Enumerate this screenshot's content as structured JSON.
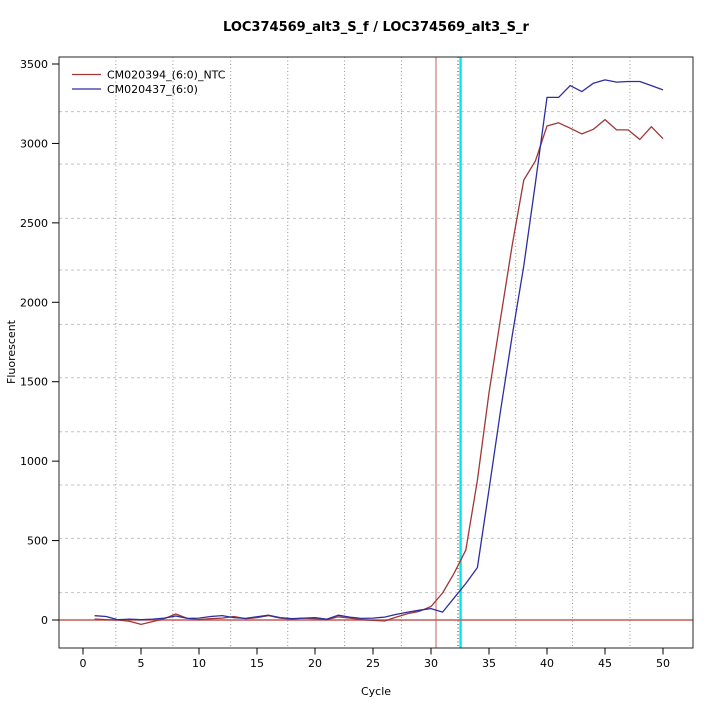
{
  "chart_data": {
    "type": "line",
    "title": "LOC374569_alt3_S_f / LOC374569_alt3_S_r",
    "xlabel": "Cycle",
    "ylabel": "Fluorescent",
    "x_ticks": [
      0,
      5,
      10,
      15,
      20,
      25,
      30,
      35,
      40,
      45,
      50
    ],
    "y_ticks": [
      0,
      500,
      1000,
      1500,
      2000,
      2500,
      3000,
      3500
    ],
    "xlim": [
      -2.1,
      52.4
    ],
    "ylim": [
      -176,
      3544
    ],
    "grid": {
      "on": true,
      "h_values": [
        172,
        514,
        850,
        1185,
        1525,
        1861,
        2203,
        2528,
        2870,
        3200
      ],
      "v_cycles": [
        2.83,
        7.75,
        12.73,
        17.65,
        22.55,
        27.45,
        32.33,
        37.3,
        42.2,
        47.15
      ],
      "h_color": "#c3c3c3",
      "v_color": "#969696"
    },
    "reference_lines": {
      "threshold_hline_y": 0,
      "threshold_hline_color": "#c45f5c",
      "ct_vline_red_x": 30.43,
      "ct_vline_red_color": "#c45f5c",
      "ct_vline_dotted_x": 32.33,
      "ct_vline_dotted_color": "#3c3c3c",
      "ct_vline_cyan_x": 32.55,
      "ct_vline_cyan_color": "#00e8e8"
    },
    "legend_position": "top-left",
    "x": [
      1,
      2,
      3,
      4,
      5,
      6,
      7,
      8,
      9,
      10,
      11,
      12,
      13,
      14,
      15,
      16,
      17,
      18,
      19,
      20,
      21,
      22,
      23,
      24,
      25,
      26,
      27,
      28,
      29,
      30,
      31,
      32,
      33,
      34,
      35,
      36,
      37,
      38,
      39,
      40,
      41,
      42,
      43,
      44,
      45,
      46,
      47,
      48,
      49,
      50
    ],
    "series": [
      {
        "name": "CM020394_(6:0)_NTC",
        "color": "#a03636",
        "values": [
          6,
          2,
          0,
          -8,
          -28,
          -10,
          8,
          38,
          10,
          2,
          8,
          12,
          22,
          8,
          15,
          28,
          12,
          5,
          12,
          8,
          2,
          20,
          12,
          2,
          -2,
          -6,
          18,
          40,
          55,
          85,
          170,
          295,
          440,
          880,
          1430,
          1900,
          2360,
          2770,
          2890,
          3110,
          3130,
          3096,
          3060,
          3089,
          3150,
          3085,
          3085,
          3025,
          3105,
          3030
        ]
      },
      {
        "name": "CM020437_(6:0)",
        "color": "#2e2e9e",
        "values": [
          27,
          22,
          2,
          5,
          2,
          5,
          12,
          25,
          10,
          12,
          22,
          28,
          15,
          10,
          20,
          30,
          15,
          8,
          12,
          15,
          5,
          30,
          18,
          10,
          12,
          18,
          35,
          50,
          62,
          72,
          50,
          140,
          230,
          330,
          820,
          1320,
          1790,
          2230,
          2750,
          3290,
          3290,
          3364,
          3326,
          3379,
          3400,
          3386,
          3390,
          3390,
          3364,
          3337
        ]
      }
    ]
  }
}
